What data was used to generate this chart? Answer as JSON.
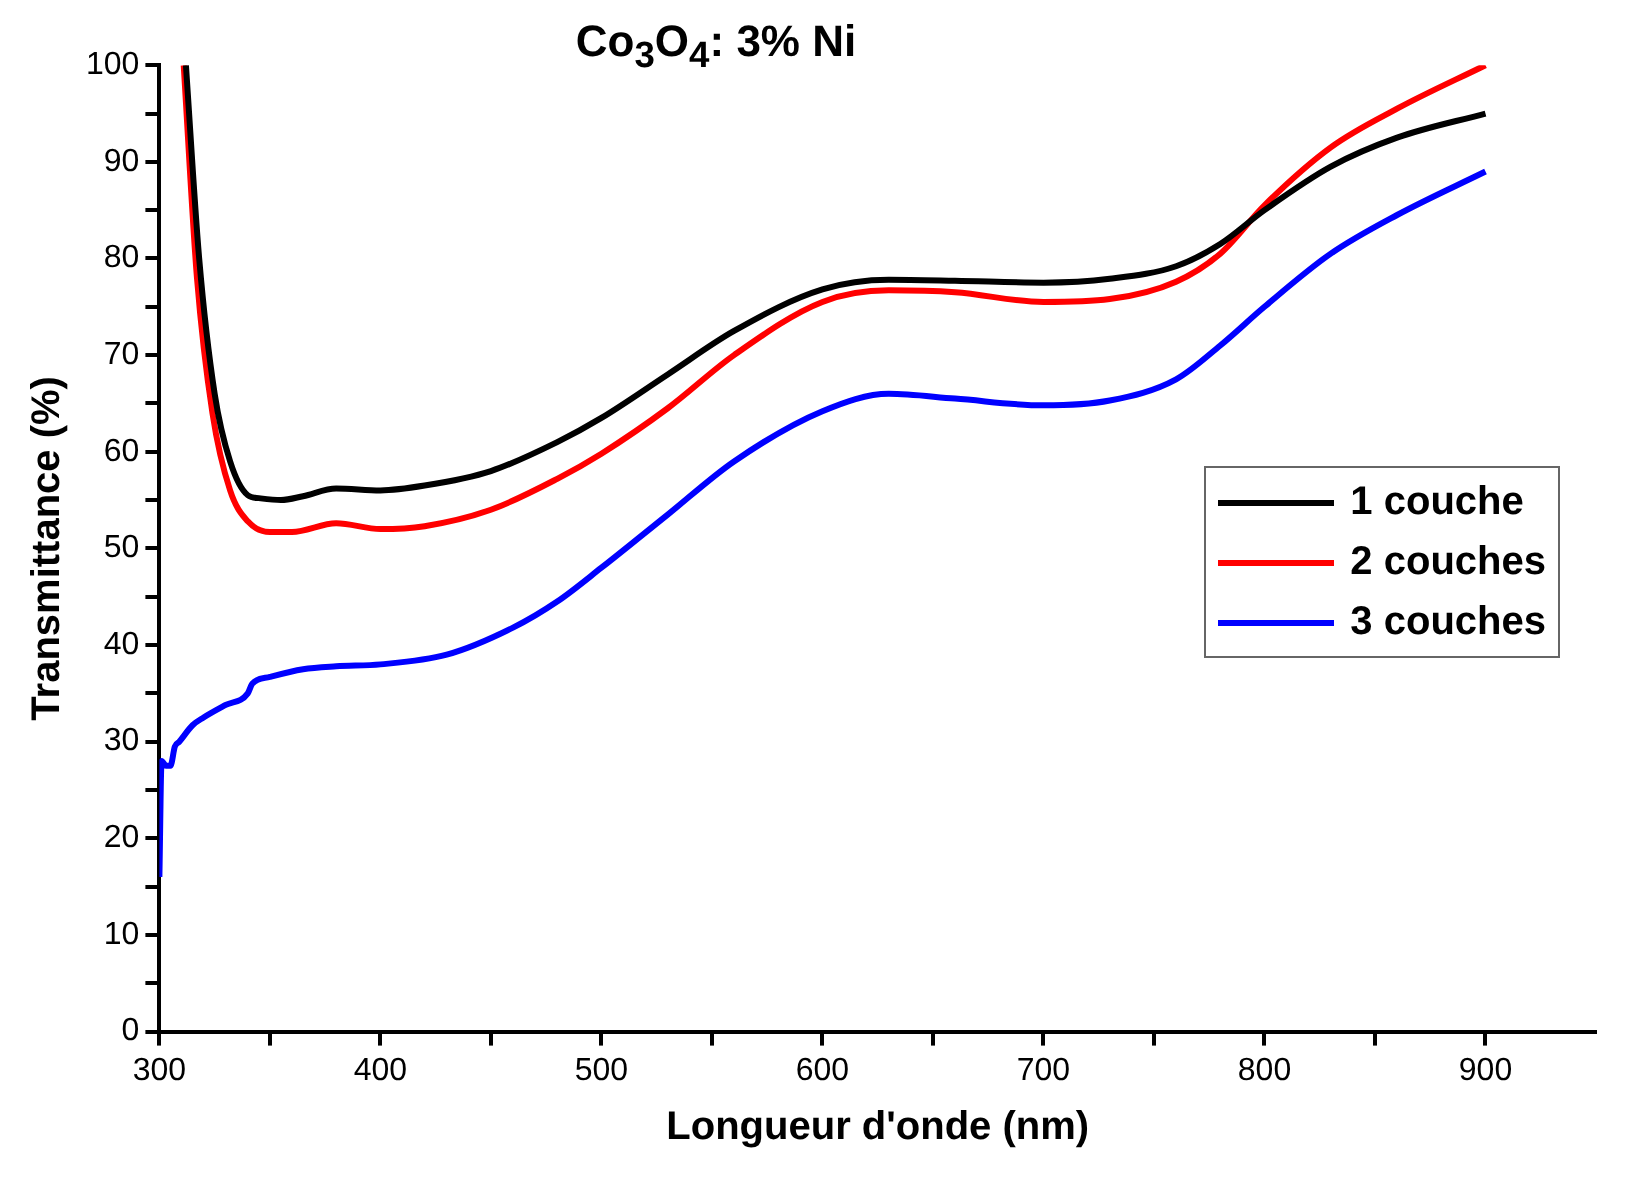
{
  "chart_data": {
    "type": "line",
    "title": "Co$_{3}$O$_{4}$: 3% Ni",
    "xlabel": "Longueur d'onde (nm)",
    "ylabel": "Transmittance (%)",
    "xlim": [
      300,
      950
    ],
    "xticks": [
      300,
      {
        "value": 350,
        "label": null
      },
      400,
      {
        "value": 450,
        "label": null
      },
      500,
      {
        "value": 550,
        "label": null
      },
      600,
      {
        "value": 650,
        "label": null
      },
      700,
      {
        "value": 750,
        "label": null
      },
      800,
      {
        "value": 850,
        "label": null
      },
      900
    ],
    "ylim": [
      0,
      100
    ],
    "yticks": [
      0,
      {
        "value": 5,
        "label": null
      },
      10,
      {
        "value": 15,
        "label": null
      },
      20,
      {
        "value": 25,
        "label": null
      },
      30,
      {
        "value": 35,
        "label": null
      },
      40,
      {
        "value": 45,
        "label": null
      },
      50,
      {
        "value": 55,
        "label": null
      },
      60,
      {
        "value": 65,
        "label": null
      },
      70,
      {
        "value": 75,
        "label": null
      },
      80,
      {
        "value": 85,
        "label": null
      },
      90,
      {
        "value": 95,
        "label": null
      },
      100
    ],
    "grid": false,
    "legend": "right",
    "marker": "none",
    "line_style": "solid",
    "series": [
      {
        "name": "1 couche",
        "color": "#000000",
        "x": [
          312,
          318,
          325,
          332,
          340,
          345,
          355,
          365,
          380,
          400,
          420,
          450,
          480,
          500,
          530,
          560,
          600,
          630,
          660,
          700,
          730,
          760,
          780,
          800,
          830,
          860,
          900
        ],
        "values": [
          100,
          80,
          66,
          59,
          55.5,
          55.2,
          55,
          55.4,
          56.2,
          56,
          56.5,
          58,
          61,
          63.5,
          68,
          72.5,
          76.8,
          77.8,
          77.7,
          77.5,
          77.9,
          79.2,
          81.5,
          85,
          89.5,
          92.5,
          95
        ]
      },
      {
        "name": "2 couches",
        "color": "#ff0000",
        "x": [
          311,
          317,
          324,
          332,
          340,
          350,
          360,
          380,
          400,
          420,
          450,
          480,
          500,
          530,
          560,
          600,
          630,
          660,
          700,
          730,
          760,
          780,
          800,
          830,
          860,
          900
        ],
        "values": [
          100,
          78,
          64,
          56,
          52.8,
          51.7,
          51.7,
          52.6,
          52,
          52.3,
          54,
          57.2,
          59.8,
          64.5,
          70,
          75.5,
          76.7,
          76.5,
          75.5,
          75.8,
          77.6,
          80.5,
          85.5,
          91.5,
          95.5,
          100
        ]
      },
      {
        "name": "3 couches",
        "color": "#0000ff",
        "x": [
          300,
          301,
          303,
          305,
          307,
          309,
          315,
          320,
          330,
          340,
          342,
          350,
          365,
          380,
          400,
          430,
          460,
          480,
          500,
          530,
          560,
          600,
          630,
          660,
          700,
          730,
          760,
          780,
          800,
          830,
          860,
          900
        ],
        "values": [
          16,
          28,
          27.5,
          27.5,
          29.5,
          30,
          31.7,
          32.5,
          33.8,
          35,
          36,
          36.7,
          37.5,
          37.8,
          38,
          39,
          41.8,
          44.5,
          48,
          53.5,
          59,
          64.2,
          66,
          65.5,
          64.8,
          65.3,
          67.5,
          71,
          75,
          80.5,
          84.5,
          89
        ]
      }
    ]
  }
}
